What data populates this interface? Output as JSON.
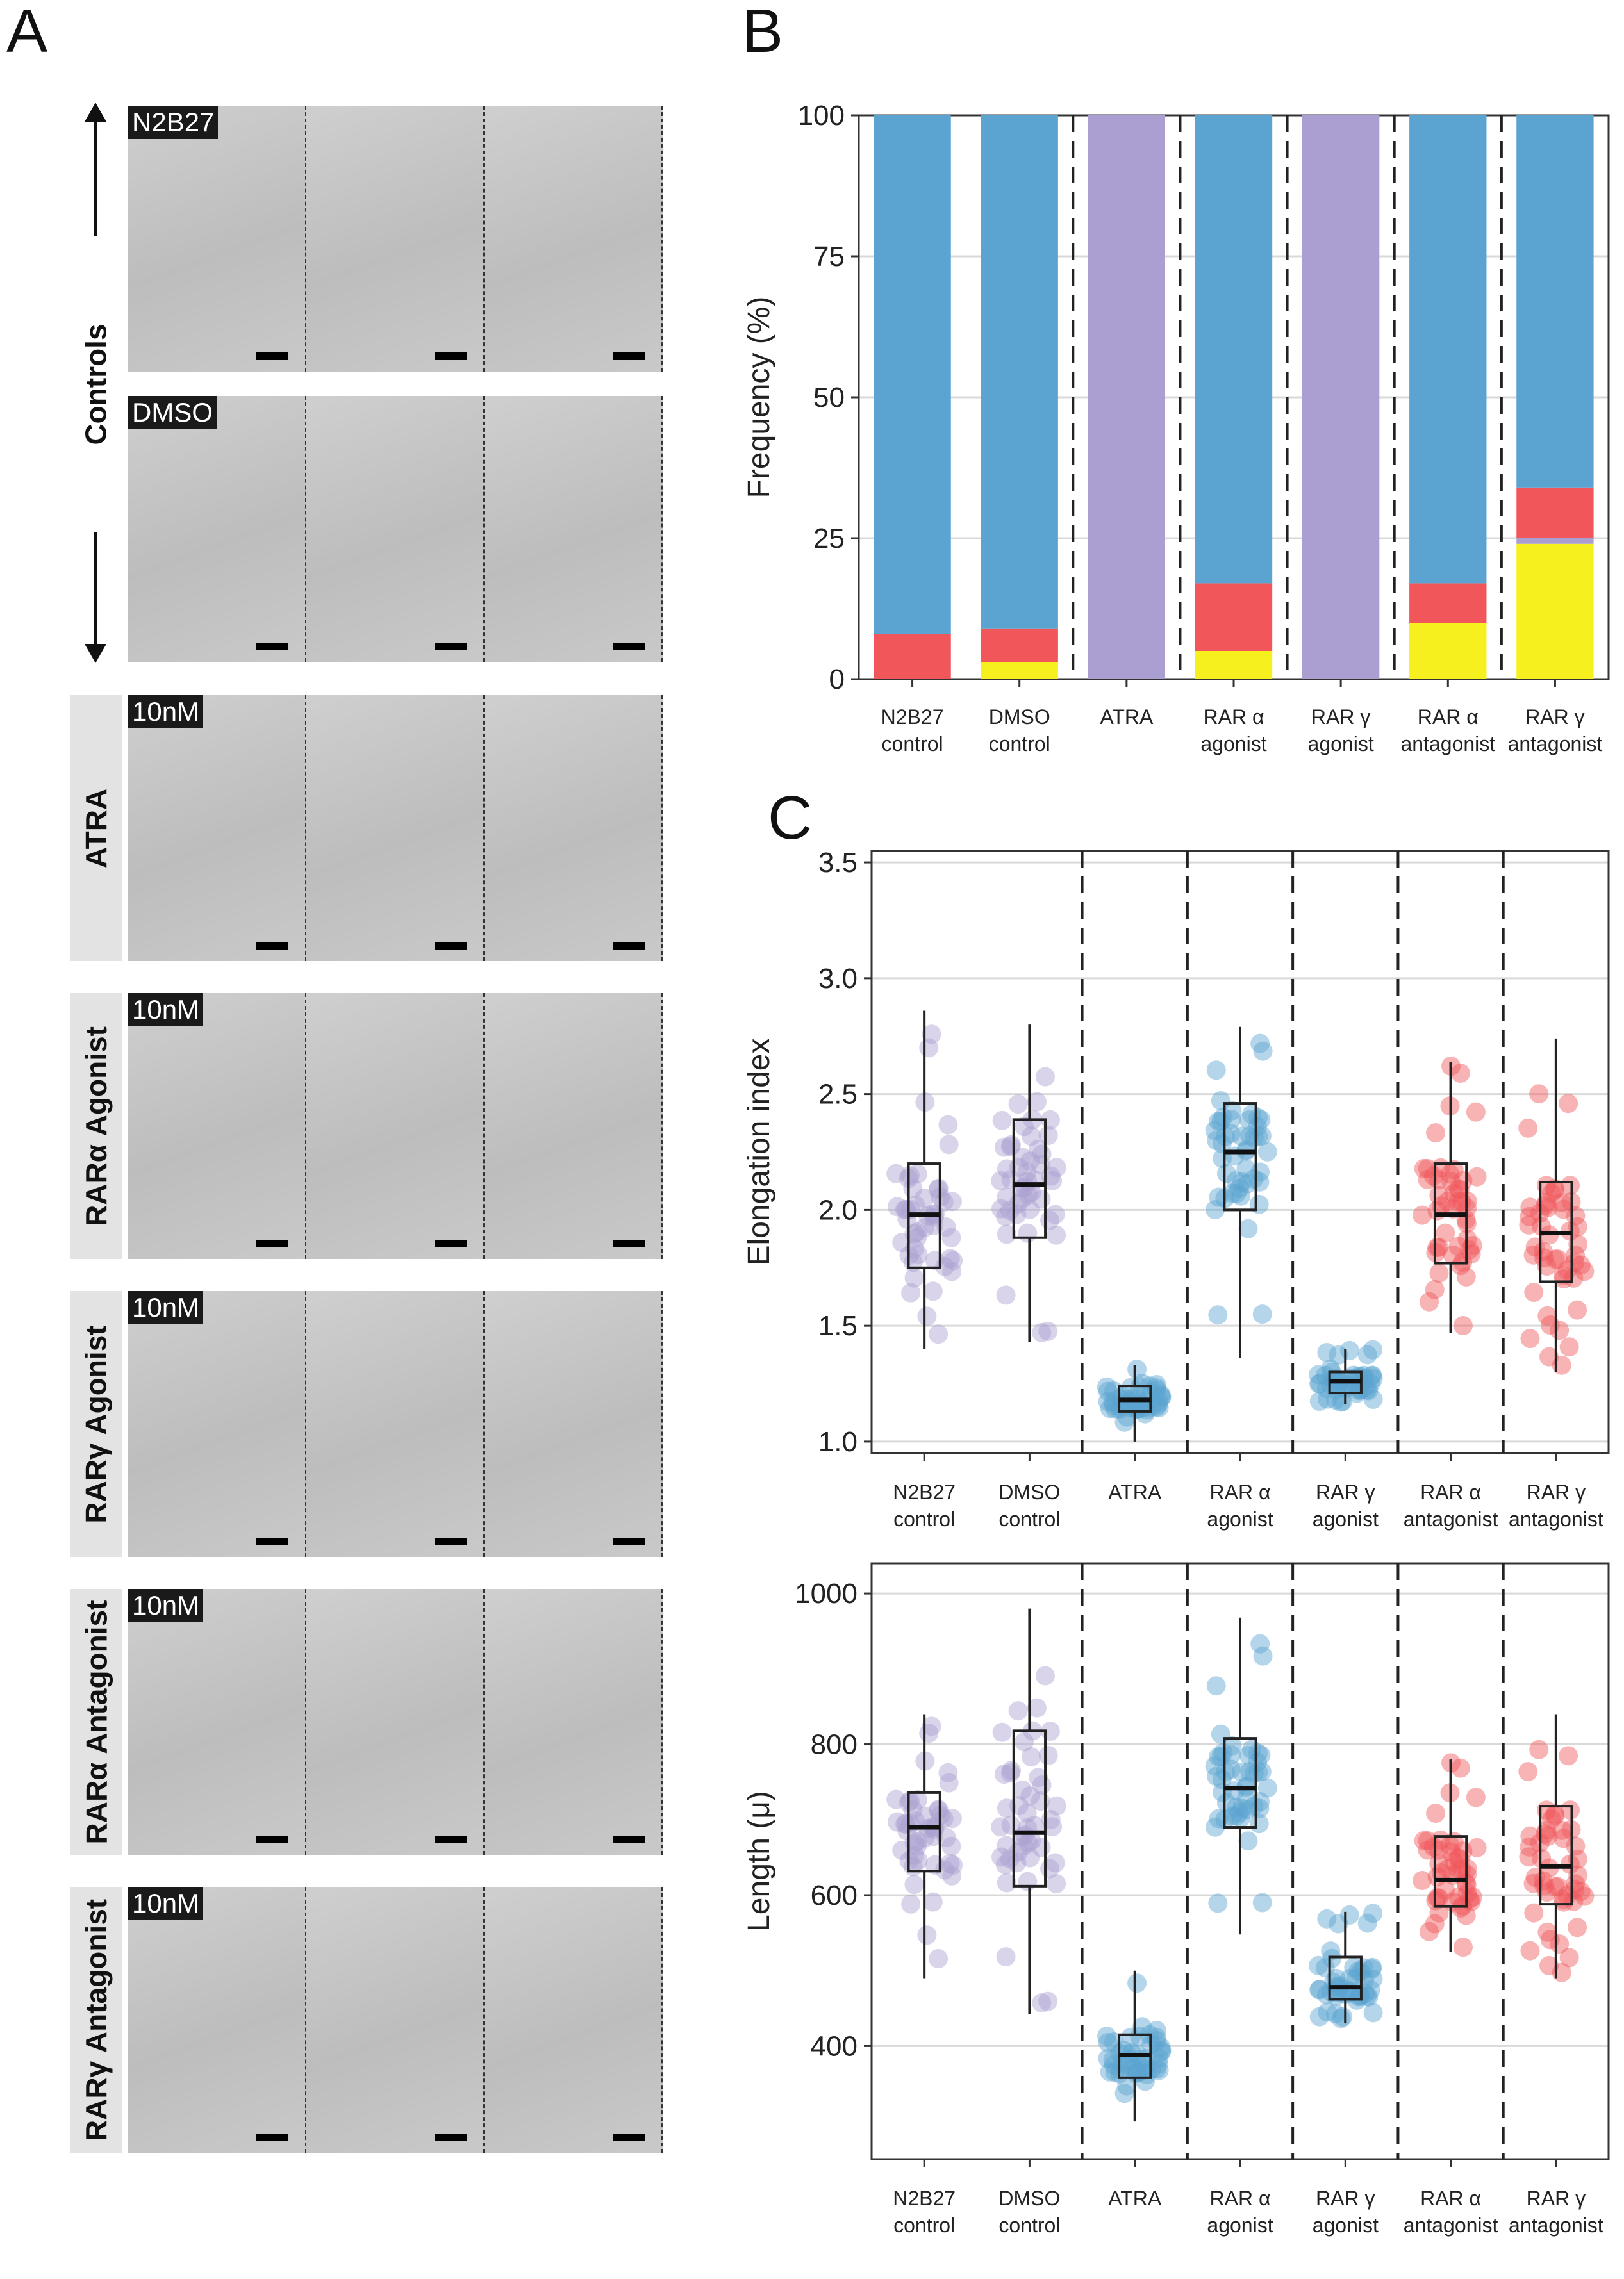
{
  "panels": {
    "a": "A",
    "b": "B",
    "c": "C"
  },
  "panelA": {
    "group_labels": [
      "Controls",
      "ATRA",
      "RARα Agonist",
      "RARγ Agonist",
      "RARα Antagonist",
      "RARγ Antagonist"
    ],
    "row_tags": [
      "N2B27",
      "DMSO",
      "10nM",
      "10nM",
      "10nM",
      "10nM",
      "10nM"
    ]
  },
  "colors": {
    "blue": "#5ba3d0",
    "red": "#f0565a",
    "purple": "#ab9fd1",
    "yellow": "#f5f01e"
  },
  "chart_data": [
    {
      "type": "bar",
      "stacked": true,
      "ylabel": "Frequency (%)",
      "ylim": [
        0,
        100
      ],
      "yticks": [
        0,
        25,
        50,
        75,
        100
      ],
      "categories": [
        [
          "N2B27",
          "control"
        ],
        [
          "DMSO",
          "control"
        ],
        [
          "ATRA"
        ],
        [
          "RAR α",
          "agonist"
        ],
        [
          "RAR γ",
          "agonist"
        ],
        [
          "RAR α",
          "antagonist"
        ],
        [
          "RAR γ",
          "antagonist"
        ]
      ],
      "series": [
        {
          "color": "#f5f01e",
          "values": [
            0,
            3,
            0,
            5,
            0,
            10,
            24
          ]
        },
        {
          "color": "#ab9fd1",
          "values": [
            0,
            0,
            100,
            0,
            100,
            0,
            1
          ]
        },
        {
          "color": "#f0565a",
          "values": [
            8,
            6,
            0,
            12,
            0,
            7,
            9
          ]
        },
        {
          "color": "#5ba3d0",
          "values": [
            92,
            91,
            0,
            83,
            0,
            83,
            66
          ]
        }
      ],
      "grid": true
    },
    {
      "type": "box",
      "ylabel": "Elongation index",
      "ylim": [
        0.95,
        3.55
      ],
      "yticks": [
        "1.0",
        "1.5",
        "2.0",
        "2.5",
        "3.0",
        "3.5"
      ],
      "categories": [
        [
          "N2B27",
          "control"
        ],
        [
          "DMSO",
          "control"
        ],
        [
          "ATRA"
        ],
        [
          "RAR α",
          "agonist"
        ],
        [
          "RAR γ",
          "agonist"
        ],
        [
          "RAR α",
          "antagonist"
        ],
        [
          "RAR γ",
          "antagonist"
        ]
      ],
      "colors": [
        "#ab9fd1",
        "#ab9fd1",
        "#5ba3d0",
        "#5ba3d0",
        "#5ba3d0",
        "#f0565a",
        "#f0565a"
      ],
      "boxes": [
        {
          "min": 1.4,
          "q1": 1.75,
          "median": 1.98,
          "q3": 2.2,
          "max": 2.86
        },
        {
          "min": 1.43,
          "q1": 1.88,
          "median": 2.11,
          "q3": 2.39,
          "max": 2.8
        },
        {
          "min": 1.0,
          "q1": 1.13,
          "median": 1.18,
          "q3": 1.24,
          "max": 1.33
        },
        {
          "min": 1.36,
          "q1": 2.0,
          "median": 2.25,
          "q3": 2.46,
          "max": 2.79
        },
        {
          "min": 1.16,
          "q1": 1.21,
          "median": 1.26,
          "q3": 1.3,
          "max": 1.4
        },
        {
          "min": 1.47,
          "q1": 1.77,
          "median": 1.98,
          "q3": 2.2,
          "max": 2.64
        },
        {
          "min": 1.3,
          "q1": 1.69,
          "median": 1.9,
          "q3": 2.12,
          "max": 2.74
        }
      ],
      "grid": true
    },
    {
      "type": "box",
      "ylabel": "Length (μ)",
      "ylim": [
        250,
        1040
      ],
      "yticks": [
        "400",
        "600",
        "800",
        "1000"
      ],
      "categories": [
        [
          "N2B27",
          "control"
        ],
        [
          "DMSO",
          "control"
        ],
        [
          "ATRA"
        ],
        [
          "RAR α",
          "agonist"
        ],
        [
          "RAR γ",
          "agonist"
        ],
        [
          "RAR α",
          "antagonist"
        ],
        [
          "RAR γ",
          "antagonist"
        ]
      ],
      "colors": [
        "#ab9fd1",
        "#ab9fd1",
        "#5ba3d0",
        "#5ba3d0",
        "#5ba3d0",
        "#f0565a",
        "#f0565a"
      ],
      "boxes": [
        {
          "min": 490,
          "q1": 632,
          "median": 690,
          "q3": 736,
          "max": 840
        },
        {
          "min": 442,
          "q1": 612,
          "median": 683,
          "q3": 818,
          "max": 980
        },
        {
          "min": 300,
          "q1": 358,
          "median": 388,
          "q3": 415,
          "max": 500
        },
        {
          "min": 548,
          "q1": 690,
          "median": 742,
          "q3": 808,
          "max": 968
        },
        {
          "min": 430,
          "q1": 462,
          "median": 478,
          "q3": 518,
          "max": 578
        },
        {
          "min": 525,
          "q1": 585,
          "median": 620,
          "q3": 678,
          "max": 780
        },
        {
          "min": 490,
          "q1": 588,
          "median": 638,
          "q3": 718,
          "max": 840
        }
      ],
      "grid": true
    }
  ]
}
